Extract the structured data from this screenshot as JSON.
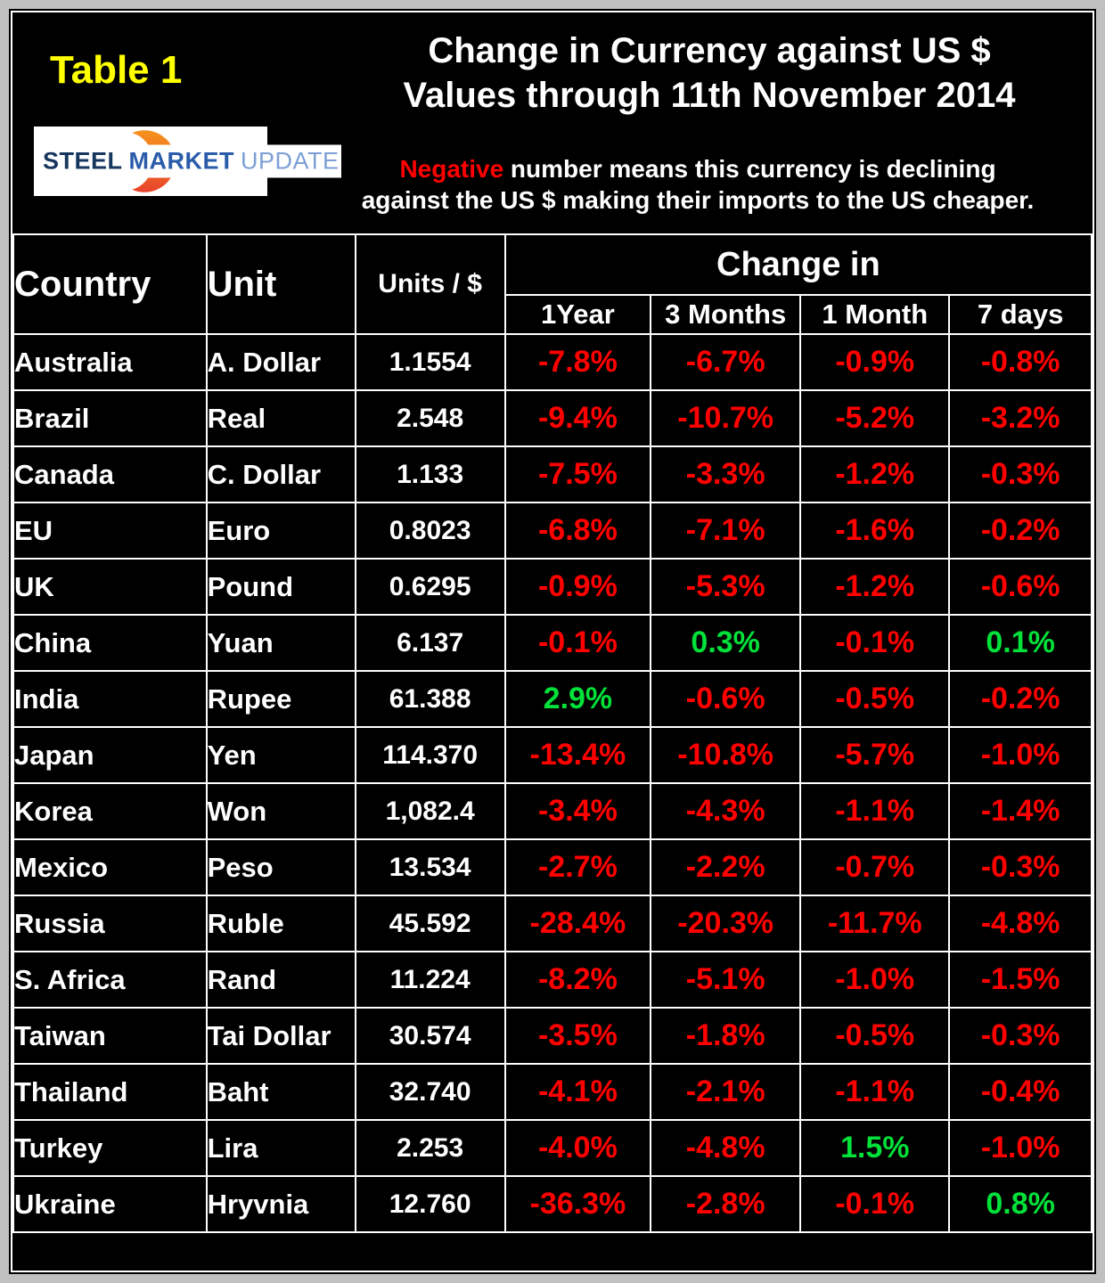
{
  "colors": {
    "page_gray": "#c0c0c0",
    "panel_black": "#000000",
    "grid_white": "#ffffff",
    "accent_yellow": "#ffff00",
    "negative_red": "#ff0000",
    "positive_green": "#00e139",
    "logo_navy": "#17365d",
    "logo_blue": "#2a5caa",
    "logo_lightblue": "#7c9fd6",
    "logo_orange": "#f6921e",
    "logo_red_orange": "#e8432d"
  },
  "header": {
    "table_label": "Table 1",
    "title_line1": "Change in Currency against US $",
    "title_line2": "Values through 11th November 2014",
    "note_highlight": "Negative",
    "note_rest_line1": " number means this currency is declining",
    "note_line2": "against the US $ making their imports to the US cheaper.",
    "logo": {
      "word1": "STEEL",
      "word2": "MARKET",
      "word3": "UPDATE"
    }
  },
  "table": {
    "col_country": "Country",
    "col_unit": "Unit",
    "col_units_per_dollar": "Units / $",
    "group_header": "Change in",
    "change_cols": [
      "1Year",
      "3 Months",
      "1 Month",
      "7 days"
    ],
    "change_col_keys": [
      "1year",
      "3months",
      "1month",
      "7days"
    ],
    "rows": [
      {
        "country": "Australia",
        "unit": "A. Dollar",
        "units": "1.1554",
        "changes": [
          "-7.8%",
          "-6.7%",
          "-0.9%",
          "-0.8%"
        ]
      },
      {
        "country": "Brazil",
        "unit": "Real",
        "units": "2.548",
        "changes": [
          "-9.4%",
          "-10.7%",
          "-5.2%",
          "-3.2%"
        ]
      },
      {
        "country": "Canada",
        "unit": "C. Dollar",
        "units": "1.133",
        "changes": [
          "-7.5%",
          "-3.3%",
          "-1.2%",
          "-0.3%"
        ]
      },
      {
        "country": "EU",
        "unit": "Euro",
        "units": "0.8023",
        "changes": [
          "-6.8%",
          "-7.1%",
          "-1.6%",
          "-0.2%"
        ]
      },
      {
        "country": "UK",
        "unit": "Pound",
        "units": "0.6295",
        "changes": [
          "-0.9%",
          "-5.3%",
          "-1.2%",
          "-0.6%"
        ]
      },
      {
        "country": "China",
        "unit": "Yuan",
        "units": "6.137",
        "changes": [
          "-0.1%",
          "0.3%",
          "-0.1%",
          "0.1%"
        ]
      },
      {
        "country": "India",
        "unit": "Rupee",
        "units": "61.388",
        "changes": [
          "2.9%",
          "-0.6%",
          "-0.5%",
          "-0.2%"
        ]
      },
      {
        "country": "Japan",
        "unit": "Yen",
        "units": "114.370",
        "changes": [
          "-13.4%",
          "-10.8%",
          "-5.7%",
          "-1.0%"
        ]
      },
      {
        "country": "Korea",
        "unit": "Won",
        "units": "1,082.4",
        "changes": [
          "-3.4%",
          "-4.3%",
          "-1.1%",
          "-1.4%"
        ]
      },
      {
        "country": "Mexico",
        "unit": "Peso",
        "units": "13.534",
        "changes": [
          "-2.7%",
          "-2.2%",
          "-0.7%",
          "-0.3%"
        ]
      },
      {
        "country": "Russia",
        "unit": "Ruble",
        "units": "45.592",
        "changes": [
          "-28.4%",
          "-20.3%",
          "-11.7%",
          "-4.8%"
        ]
      },
      {
        "country": "S. Africa",
        "unit": "Rand",
        "units": "11.224",
        "changes": [
          "-8.2%",
          "-5.1%",
          "-1.0%",
          "-1.5%"
        ]
      },
      {
        "country": "Taiwan",
        "unit": "Tai Dollar",
        "units": "30.574",
        "changes": [
          "-3.5%",
          "-1.8%",
          "-0.5%",
          "-0.3%"
        ]
      },
      {
        "country": "Thailand",
        "unit": "Baht",
        "units": "32.740",
        "changes": [
          "-4.1%",
          "-2.1%",
          "-1.1%",
          "-0.4%"
        ]
      },
      {
        "country": "Turkey",
        "unit": "Lira",
        "units": "2.253",
        "changes": [
          "-4.0%",
          "-4.8%",
          "1.5%",
          "-1.0%"
        ]
      },
      {
        "country": "Ukraine",
        "unit": "Hryvnia",
        "units": "12.760",
        "changes": [
          "-36.3%",
          "-2.8%",
          "-0.1%",
          "0.8%"
        ]
      }
    ]
  },
  "chart_data": {
    "type": "table",
    "title": "Change in Currency against US $ Values through 11th November 2014",
    "note": "Negative number means this currency is declining against the US $ making their imports to the US cheaper.",
    "columns": [
      "Country",
      "Unit",
      "Units / $",
      "1Year",
      "3 Months",
      "1 Month",
      "7 days"
    ],
    "rows": [
      [
        "Australia",
        "A. Dollar",
        1.1554,
        -7.8,
        -6.7,
        -0.9,
        -0.8
      ],
      [
        "Brazil",
        "Real",
        2.548,
        -9.4,
        -10.7,
        -5.2,
        -3.2
      ],
      [
        "Canada",
        "C. Dollar",
        1.133,
        -7.5,
        -3.3,
        -1.2,
        -0.3
      ],
      [
        "EU",
        "Euro",
        0.8023,
        -6.8,
        -7.1,
        -1.6,
        -0.2
      ],
      [
        "UK",
        "Pound",
        0.6295,
        -0.9,
        -5.3,
        -1.2,
        -0.6
      ],
      [
        "China",
        "Yuan",
        6.137,
        -0.1,
        0.3,
        -0.1,
        0.1
      ],
      [
        "India",
        "Rupee",
        61.388,
        2.9,
        -0.6,
        -0.5,
        -0.2
      ],
      [
        "Japan",
        "Yen",
        114.37,
        -13.4,
        -10.8,
        -5.7,
        -1.0
      ],
      [
        "Korea",
        "Won",
        1082.4,
        -3.4,
        -4.3,
        -1.1,
        -1.4
      ],
      [
        "Mexico",
        "Peso",
        13.534,
        -2.7,
        -2.2,
        -0.7,
        -0.3
      ],
      [
        "Russia",
        "Ruble",
        45.592,
        -28.4,
        -20.3,
        -11.7,
        -4.8
      ],
      [
        "S. Africa",
        "Rand",
        11.224,
        -8.2,
        -5.1,
        -1.0,
        -1.5
      ],
      [
        "Taiwan",
        "Tai Dollar",
        30.574,
        -3.5,
        -1.8,
        -0.5,
        -0.3
      ],
      [
        "Thailand",
        "Baht",
        32.74,
        -4.1,
        -2.1,
        -1.1,
        -0.4
      ],
      [
        "Turkey",
        "Lira",
        2.253,
        -4.0,
        -4.8,
        1.5,
        -1.0
      ],
      [
        "Ukraine",
        "Hryvnia",
        12.76,
        -36.3,
        -2.8,
        -0.1,
        0.8
      ]
    ],
    "value_units": "percent change vs US $",
    "color_rule": {
      "negative": "#ff0000",
      "positive": "#00e139"
    }
  }
}
